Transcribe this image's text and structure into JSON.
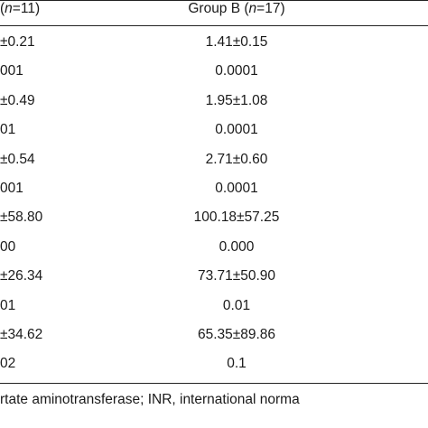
{
  "header": {
    "left": [
      "(",
      "n",
      "=11)"
    ],
    "right": [
      "Group B (",
      "n",
      "=17)"
    ]
  },
  "table": {
    "rows": [
      [
        "±0.21",
        "1.41±0.15"
      ],
      [
        "001",
        "0.0001"
      ],
      [
        "±0.49",
        "1.95±1.08"
      ],
      [
        "01",
        "0.0001"
      ],
      [
        "±0.54",
        "2.71±0.60"
      ],
      [
        "001",
        "0.0001"
      ],
      [
        "±58.80",
        "100.18±57.25"
      ],
      [
        "00",
        "0.000"
      ],
      [
        "±26.34",
        "73.71±50.90"
      ],
      [
        "01",
        "0.01"
      ],
      [
        "±34.62",
        "65.35±89.86"
      ],
      [
        "02",
        "0.1"
      ]
    ]
  },
  "footnote": "rtate aminotransferase; INR, international norma"
}
